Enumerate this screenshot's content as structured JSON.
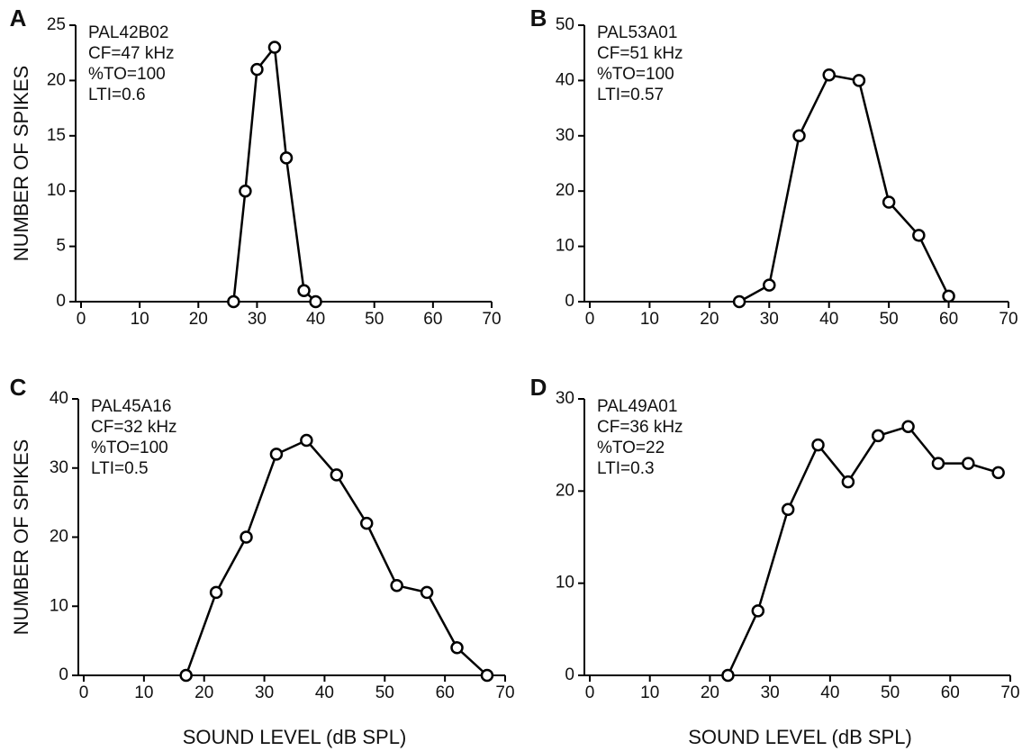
{
  "chart_data": [
    {
      "type": "line",
      "panel_label": "A",
      "annotations": [
        "PAL42B02",
        "CF=47 kHz",
        "%TO=100",
        "LTI=0.6"
      ],
      "ylabel": "NUMBER OF SPIKES",
      "x": [
        26,
        28,
        30,
        33,
        35,
        38,
        40
      ],
      "values": [
        0,
        10,
        21,
        23,
        13,
        1,
        0
      ],
      "color": "#000000",
      "xlim": [
        0,
        70
      ],
      "xticks": [
        0,
        10,
        20,
        30,
        40,
        50,
        60,
        70
      ],
      "ylim": [
        0,
        25
      ],
      "yticks": [
        0,
        5,
        10,
        15,
        20,
        25
      ]
    },
    {
      "type": "line",
      "panel_label": "B",
      "annotations": [
        "PAL53A01",
        "CF=51 kHz",
        "%TO=100",
        "LTI=0.57"
      ],
      "x": [
        25,
        30,
        35,
        40,
        45,
        50,
        55,
        60
      ],
      "values": [
        0,
        3,
        30,
        41,
        40,
        18,
        12,
        1
      ],
      "color": "#000000",
      "xlim": [
        0,
        70
      ],
      "xticks": [
        0,
        10,
        20,
        30,
        40,
        50,
        60,
        70
      ],
      "ylim": [
        0,
        50
      ],
      "yticks": [
        0,
        10,
        20,
        30,
        40,
        50
      ]
    },
    {
      "type": "line",
      "panel_label": "C",
      "annotations": [
        "PAL45A16",
        "CF=32 kHz",
        "%TO=100",
        "LTI=0.5"
      ],
      "ylabel": "NUMBER OF SPIKES",
      "xlabel": "SOUND LEVEL (dB SPL)",
      "x": [
        17,
        22,
        27,
        32,
        37,
        42,
        47,
        52,
        57,
        62,
        67
      ],
      "values": [
        0,
        12,
        20,
        32,
        34,
        29,
        22,
        13,
        12,
        4,
        0
      ],
      "color": "#000000",
      "xlim": [
        0,
        70
      ],
      "xticks": [
        0,
        10,
        20,
        30,
        40,
        50,
        60,
        70
      ],
      "ylim": [
        0,
        40
      ],
      "yticks": [
        0,
        10,
        20,
        30,
        40
      ]
    },
    {
      "type": "line",
      "panel_label": "D",
      "annotations": [
        "PAL49A01",
        "CF=36 kHz",
        "%TO=22",
        "LTI=0.3"
      ],
      "xlabel": "SOUND LEVEL (dB SPL)",
      "x": [
        23,
        28,
        33,
        38,
        43,
        48,
        53,
        58,
        63,
        68
      ],
      "values": [
        0,
        7,
        18,
        25,
        21,
        26,
        27,
        23,
        23,
        22
      ],
      "color": "#000000",
      "xlim": [
        0,
        70
      ],
      "xticks": [
        0,
        10,
        20,
        30,
        40,
        50,
        60,
        70
      ],
      "ylim": [
        0,
        30
      ],
      "yticks": [
        0,
        10,
        20,
        30
      ]
    }
  ]
}
